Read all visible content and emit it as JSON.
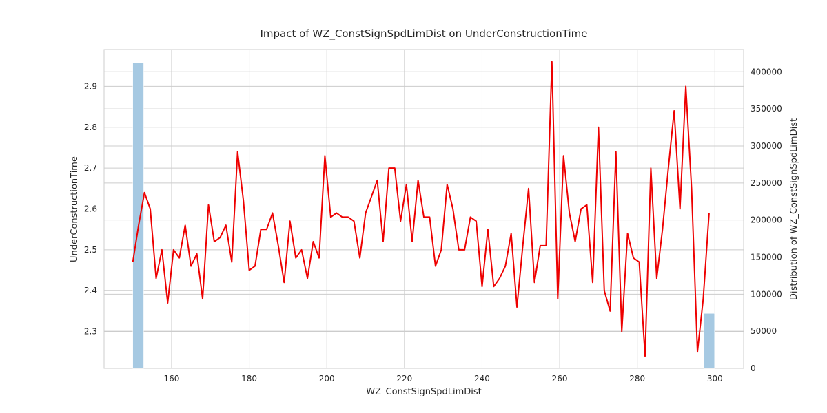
{
  "chart_data": {
    "type": "line",
    "title": "Impact of WZ_ConstSignSpdLimDist on UnderConstructionTime",
    "xlabel": "WZ_ConstSignSpdLimDist",
    "ylabel": "UnderConstructionTime",
    "y2label": "Distribution of WZ_ConstSignSpdLimDist",
    "xlim": [
      142.6,
      307.4
    ],
    "ylim": [
      2.21,
      2.99
    ],
    "y2lim": [
      0,
      430000
    ],
    "xticks": [
      160,
      180,
      200,
      220,
      240,
      260,
      280,
      300
    ],
    "yticks": [
      2.3,
      2.4,
      2.5,
      2.6,
      2.7,
      2.8,
      2.9
    ],
    "y2ticks": [
      0,
      50000,
      100000,
      150000,
      200000,
      250000,
      300000,
      350000,
      400000
    ],
    "ytick_labels": [
      "2.3",
      "2.4",
      "2.5",
      "2.6",
      "2.7",
      "2.8",
      "2.9"
    ],
    "y2tick_labels": [
      "0",
      "50000",
      "100000",
      "150000",
      "200000",
      "250000",
      "300000",
      "350000",
      "400000"
    ],
    "grid": true,
    "line_color": "#ee0000",
    "bar_color": "#a6c9e2",
    "series": [
      {
        "type": "line",
        "x": [
          150,
          151.5,
          153,
          154.5,
          156,
          157.5,
          159,
          160.5,
          162,
          163.5,
          165,
          166.5,
          168,
          169.5,
          171,
          172.5,
          174,
          175.5,
          177,
          178.5,
          180,
          181.5,
          183,
          184.5,
          186,
          187.5,
          189,
          190.5,
          192,
          193.5,
          195,
          196.5,
          198,
          199.5,
          201,
          202.5,
          204,
          205.5,
          207,
          208.5,
          210,
          211.5,
          213,
          214.5,
          216,
          217.5,
          219,
          220.5,
          222,
          223.5,
          225,
          226.5,
          228,
          229.5,
          231,
          232.5,
          234,
          235.5,
          237,
          238.5,
          240,
          241.5,
          243,
          244.5,
          246,
          247.5,
          249,
          250.5,
          252,
          253.5,
          255,
          256.5,
          258,
          259.5,
          261,
          262.5,
          264,
          265.5,
          267,
          268.5,
          270,
          271.5,
          273,
          274.5,
          276,
          277.5,
          279,
          280.5,
          282,
          283.5,
          285,
          286.5,
          288,
          289.5,
          291,
          292.5,
          294,
          295.5,
          297,
          298.5
        ],
        "values": [
          2.47,
          2.56,
          2.64,
          2.6,
          2.43,
          2.5,
          2.37,
          2.5,
          2.48,
          2.56,
          2.46,
          2.49,
          2.38,
          2.61,
          2.52,
          2.53,
          2.56,
          2.47,
          2.74,
          2.62,
          2.45,
          2.46,
          2.55,
          2.55,
          2.59,
          2.51,
          2.42,
          2.57,
          2.48,
          2.5,
          2.43,
          2.52,
          2.48,
          2.73,
          2.58,
          2.59,
          2.58,
          2.58,
          2.57,
          2.48,
          2.59,
          2.63,
          2.67,
          2.52,
          2.7,
          2.7,
          2.57,
          2.66,
          2.52,
          2.67,
          2.58,
          2.58,
          2.46,
          2.5,
          2.66,
          2.6,
          2.5,
          2.5,
          2.58,
          2.57,
          2.41,
          2.55,
          2.41,
          2.43,
          2.46,
          2.54,
          2.36,
          2.51,
          2.65,
          2.42,
          2.51,
          2.51,
          2.96,
          2.38,
          2.73,
          2.59,
          2.52,
          2.6,
          2.61,
          2.42,
          2.8,
          2.4,
          2.35,
          2.74,
          2.3,
          2.54,
          2.48,
          2.47,
          2.24,
          2.7,
          2.43,
          2.55,
          2.7,
          2.84,
          2.6,
          2.9,
          2.65,
          2.25,
          2.38,
          2.59
        ]
      },
      {
        "type": "bar",
        "axis": "y2",
        "bins": [
          {
            "x0": 150.0,
            "x1": 152.8,
            "value": 412000
          },
          {
            "x0": 297.1,
            "x1": 299.9,
            "value": 74000
          }
        ]
      }
    ]
  }
}
